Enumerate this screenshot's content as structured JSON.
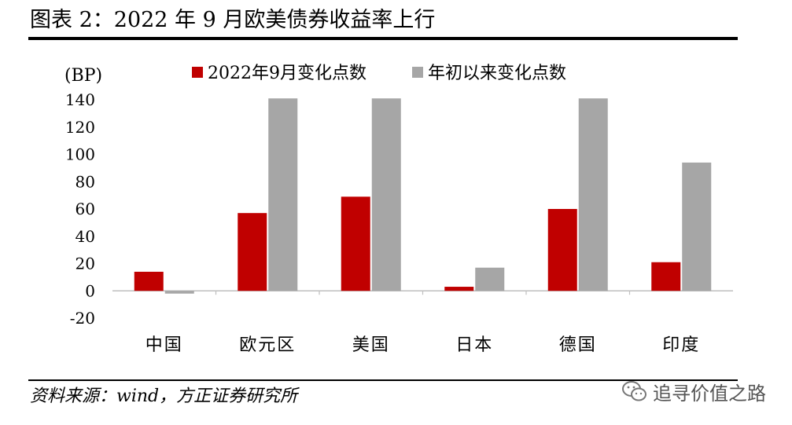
{
  "figure": {
    "title": "图表 2：2022 年 9 月欧美债券收益率上行",
    "source": "资料来源：wind，方正证券研究所"
  },
  "watermark": {
    "text": "追寻价值之路",
    "icon": "wechat-icon"
  },
  "chart_data": {
    "type": "bar",
    "unit_label": "(BP)",
    "categories": [
      "中国",
      "欧元区",
      "美国",
      "日本",
      "德国",
      "印度"
    ],
    "series": [
      {
        "name": "2022年9月变化点数",
        "color": "#c00000",
        "values": [
          14,
          57,
          69,
          3,
          60,
          21
        ]
      },
      {
        "name": "年初以来变化点数",
        "color": "#a6a6a6",
        "values": [
          -2,
          141,
          141,
          17,
          141,
          94
        ]
      }
    ],
    "ylim": [
      -20,
      140
    ],
    "yticks": [
      -20,
      0,
      20,
      40,
      60,
      80,
      100,
      120,
      140
    ],
    "grid": false,
    "legend_position": "top"
  }
}
